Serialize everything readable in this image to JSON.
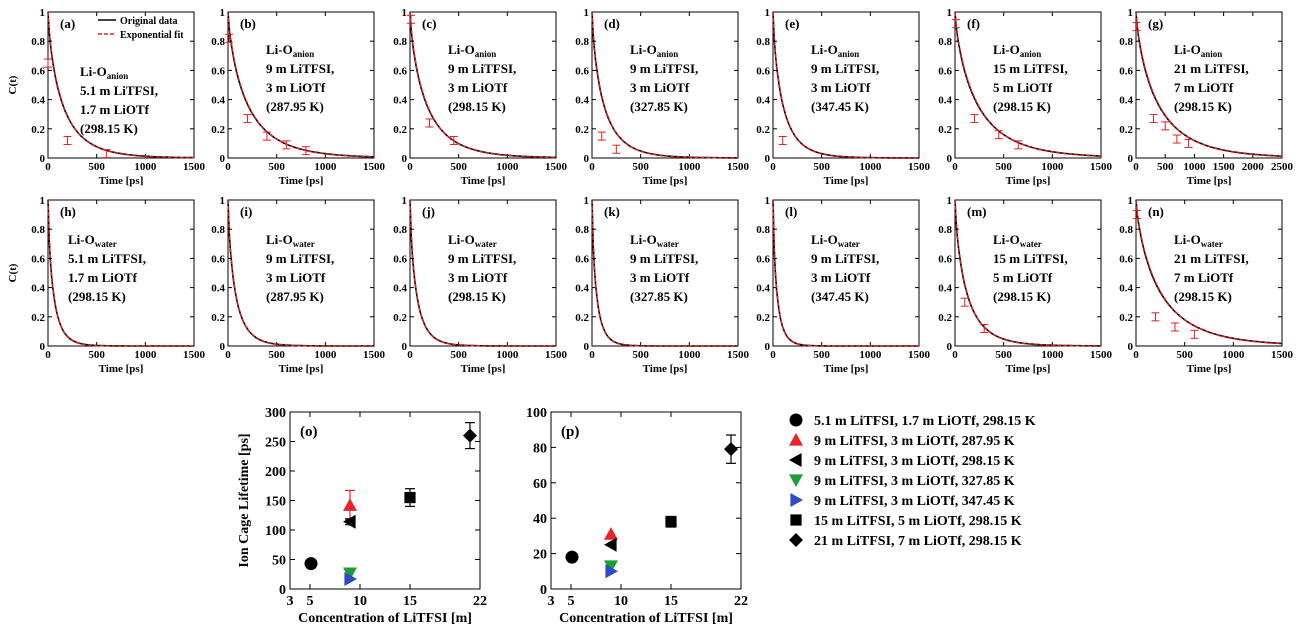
{
  "colors": {
    "original": "#000000",
    "fit": "#e02020",
    "series_markers": [
      "#000000",
      "#e8232a",
      "#000000",
      "#1b9e3a",
      "#2f4bc4",
      "#000000",
      "#000000"
    ]
  },
  "legend_small": {
    "original": "Original data",
    "fit": "Exponential fit"
  },
  "labels": {
    "time_xlabel": "Time [ps]",
    "ct_ylabel": "C(t)",
    "bottom_xlabel": "Concentration of LiTFSI [m]",
    "bottom_ylabel": "Ion Cage Lifetime [ps]"
  },
  "ct_yticks": [
    "0",
    "0.2",
    "0.4",
    "0.6",
    "0.8",
    "1"
  ],
  "panels": [
    {
      "tag": "(a)",
      "lines": [
        "Li-Oanion",
        "5.1 m LiTFSI,",
        "1.7 m LiOTf",
        "(298.15 K)"
      ],
      "xticks": [
        "0",
        "500",
        "1000",
        "1500"
      ],
      "xmax": 1500,
      "tau": 150,
      "err": [
        [
          0,
          0.65
        ],
        [
          200,
          0.12
        ],
        [
          600,
          0.03
        ]
      ]
    },
    {
      "tag": "(b)",
      "lines": [
        "Li-Oanion",
        "9 m LiTFSI,",
        "3 m LiOTf",
        "(287.95 K)"
      ],
      "xticks": [
        "0",
        "500",
        "1000",
        "1500"
      ],
      "xmax": 1500,
      "tau": 200,
      "err": [
        [
          10,
          0.82
        ],
        [
          200,
          0.27
        ],
        [
          400,
          0.15
        ],
        [
          600,
          0.09
        ],
        [
          800,
          0.05
        ]
      ]
    },
    {
      "tag": "(c)",
      "lines": [
        "Li-Oanion",
        "9 m LiTFSI,",
        "3 m LiOTf",
        "(298.15 K)"
      ],
      "xticks": [
        "0",
        "500",
        "1000",
        "1500"
      ],
      "xmax": 1500,
      "tau": 170,
      "err": [
        [
          10,
          0.95
        ],
        [
          200,
          0.24
        ],
        [
          450,
          0.12
        ]
      ]
    },
    {
      "tag": "(d)",
      "lines": [
        "Li-Oanion",
        "9 m LiTFSI,",
        "3 m LiOTf",
        "(327.85 K)"
      ],
      "xticks": [
        "0",
        "500",
        "1000",
        "1500"
      ],
      "xmax": 1500,
      "tau": 120,
      "err": [
        [
          100,
          0.15
        ],
        [
          250,
          0.06
        ]
      ]
    },
    {
      "tag": "(e)",
      "lines": [
        "Li-Oanion",
        "9 m LiTFSI,",
        "3 m LiOTf",
        "(347.45 K)"
      ],
      "xticks": [
        "0",
        "500",
        "1000",
        "1500"
      ],
      "xmax": 1500,
      "tau": 100,
      "err": [
        [
          100,
          0.12
        ]
      ]
    },
    {
      "tag": "(f)",
      "lines": [
        "Li-Oanion",
        "15 m LiTFSI,",
        "5 m LiOTf",
        "(298.15 K)"
      ],
      "xticks": [
        "0",
        "500",
        "1000",
        "1500"
      ],
      "xmax": 1500,
      "tau": 230,
      "err": [
        [
          10,
          0.92
        ],
        [
          200,
          0.27
        ],
        [
          450,
          0.16
        ],
        [
          650,
          0.09
        ]
      ]
    },
    {
      "tag": "(g)",
      "lines": [
        "Li-Oanion",
        "21 m LiTFSI,",
        "7 m LiOTf",
        "(298.15 K)"
      ],
      "xticks": [
        "0",
        "500",
        "1000",
        "1500",
        "2000",
        "2500"
      ],
      "xmax": 2500,
      "tau": 380,
      "err": [
        [
          10,
          0.9
        ],
        [
          300,
          0.27
        ],
        [
          500,
          0.22
        ],
        [
          700,
          0.13
        ],
        [
          900,
          0.1
        ]
      ]
    },
    {
      "tag": "(h)",
      "lines": [
        "Li-Owater",
        "5.1 m LiTFSI,",
        "1.7 m LiOTf",
        "(298.15 K)"
      ],
      "xticks": [
        "0",
        "500",
        "1000",
        "1500"
      ],
      "xmax": 1500,
      "tau": 55,
      "err": []
    },
    {
      "tag": "(i)",
      "lines": [
        "Li-Owater",
        "9 m LiTFSI,",
        "3 m LiOTf",
        "(287.95 K)"
      ],
      "xticks": [
        "0",
        "500",
        "1000",
        "1500"
      ],
      "xmax": 1500,
      "tau": 75,
      "err": []
    },
    {
      "tag": "(j)",
      "lines": [
        "Li-Owater",
        "9 m LiTFSI,",
        "3 m LiOTf",
        "(298.15 K)"
      ],
      "xticks": [
        "0",
        "500",
        "1000",
        "1500"
      ],
      "xmax": 1500,
      "tau": 65,
      "err": []
    },
    {
      "tag": "(k)",
      "lines": [
        "Li-Owater",
        "9 m LiTFSI,",
        "3 m LiOTf",
        "(327.85 K)"
      ],
      "xticks": [
        "0",
        "500",
        "1000",
        "1500"
      ],
      "xmax": 1500,
      "tau": 45,
      "err": []
    },
    {
      "tag": "(l)",
      "lines": [
        "Li-Owater",
        "9 m LiTFSI,",
        "3 m LiOTf",
        "(347.45 K)"
      ],
      "xticks": [
        "0",
        "500",
        "1000",
        "1500"
      ],
      "xmax": 1500,
      "tau": 40,
      "err": []
    },
    {
      "tag": "(m)",
      "lines": [
        "Li-Owater",
        "15 m LiTFSI,",
        "5 m LiOTf",
        "(298.15 K)"
      ],
      "xticks": [
        "0",
        "500",
        "1000",
        "1500"
      ],
      "xmax": 1500,
      "tau": 120,
      "err": [
        [
          100,
          0.3
        ],
        [
          300,
          0.12
        ]
      ]
    },
    {
      "tag": "(n)",
      "lines": [
        "Li-Owater",
        "21 m LiTFSI,",
        "7 m LiOTf",
        "(298.15 K)"
      ],
      "xticks": [
        "0",
        "500",
        "1000",
        "1500"
      ],
      "xmax": 1500,
      "tau": 250,
      "err": [
        [
          10,
          0.9
        ],
        [
          200,
          0.2
        ],
        [
          400,
          0.13
        ],
        [
          600,
          0.08
        ]
      ]
    }
  ],
  "chart_data": [
    {
      "type": "scatter",
      "tag": "(o)",
      "xlabel": "Concentration of LiTFSI [m]",
      "ylabel": "Ion Cage Lifetime [ps]",
      "xlim": [
        3,
        22
      ],
      "ylim": [
        0,
        300
      ],
      "xticks": [
        "3",
        "5",
        "10",
        "15",
        "22"
      ],
      "yticks": [
        "0",
        "50",
        "100",
        "150",
        "200",
        "250",
        "300"
      ],
      "series": [
        {
          "name": "5.1 m LiTFSI, 1.7 m LiOTf, 298.15 K",
          "marker": "circle",
          "x": 5.1,
          "y": 43,
          "err": 0
        },
        {
          "name": "9 m LiTFSI, 3 m LiOTf, 287.95 K",
          "marker": "triangle-up",
          "x": 9,
          "y": 142,
          "err": 25
        },
        {
          "name": "9 m LiTFSI, 3 m LiOTf, 298.15 K",
          "marker": "triangle-left",
          "x": 9,
          "y": 114,
          "err": 5
        },
        {
          "name": "9 m LiTFSI, 3 m LiOTf, 327.85 K",
          "marker": "triangle-down",
          "x": 9,
          "y": 27,
          "err": 0
        },
        {
          "name": "9 m LiTFSI, 3 m LiOTf, 347.45 K",
          "marker": "triangle-right",
          "x": 9,
          "y": 17,
          "err": 0
        },
        {
          "name": "15 m LiTFSI, 5 m LiOTf, 298.15 K",
          "marker": "square",
          "x": 15,
          "y": 155,
          "err": 15
        },
        {
          "name": "21 m LiTFSI, 7 m LiOTf, 298.15 K",
          "marker": "diamond",
          "x": 21,
          "y": 260,
          "err": 22
        }
      ]
    },
    {
      "type": "scatter",
      "tag": "(p)",
      "xlabel": "Concentration of LiTFSI [m]",
      "xlim": [
        3,
        22
      ],
      "ylim": [
        0,
        100
      ],
      "xticks": [
        "3",
        "5",
        "10",
        "15",
        "22"
      ],
      "yticks": [
        "0",
        "20",
        "40",
        "60",
        "80",
        "100"
      ],
      "series": [
        {
          "name": "5.1 m LiTFSI, 1.7 m LiOTf, 298.15 K",
          "marker": "circle",
          "x": 5.1,
          "y": 18,
          "err": 0
        },
        {
          "name": "9 m LiTFSI, 3 m LiOTf, 287.95 K",
          "marker": "triangle-up",
          "x": 9,
          "y": 31,
          "err": 0
        },
        {
          "name": "9 m LiTFSI, 3 m LiOTf, 298.15 K",
          "marker": "triangle-left",
          "x": 9,
          "y": 25,
          "err": 0
        },
        {
          "name": "9 m LiTFSI, 3 m LiOTf, 327.85 K",
          "marker": "triangle-down",
          "x": 9,
          "y": 13,
          "err": 0
        },
        {
          "name": "9 m LiTFSI, 3 m LiOTf, 347.45 K",
          "marker": "triangle-right",
          "x": 9,
          "y": 10,
          "err": 0
        },
        {
          "name": "15 m LiTFSI, 5 m LiOTf, 298.15 K",
          "marker": "square",
          "x": 15,
          "y": 38,
          "err": 3
        },
        {
          "name": "21 m LiTFSI, 7 m LiOTf, 298.15 K",
          "marker": "diamond",
          "x": 21,
          "y": 79,
          "err": 8
        }
      ]
    }
  ]
}
